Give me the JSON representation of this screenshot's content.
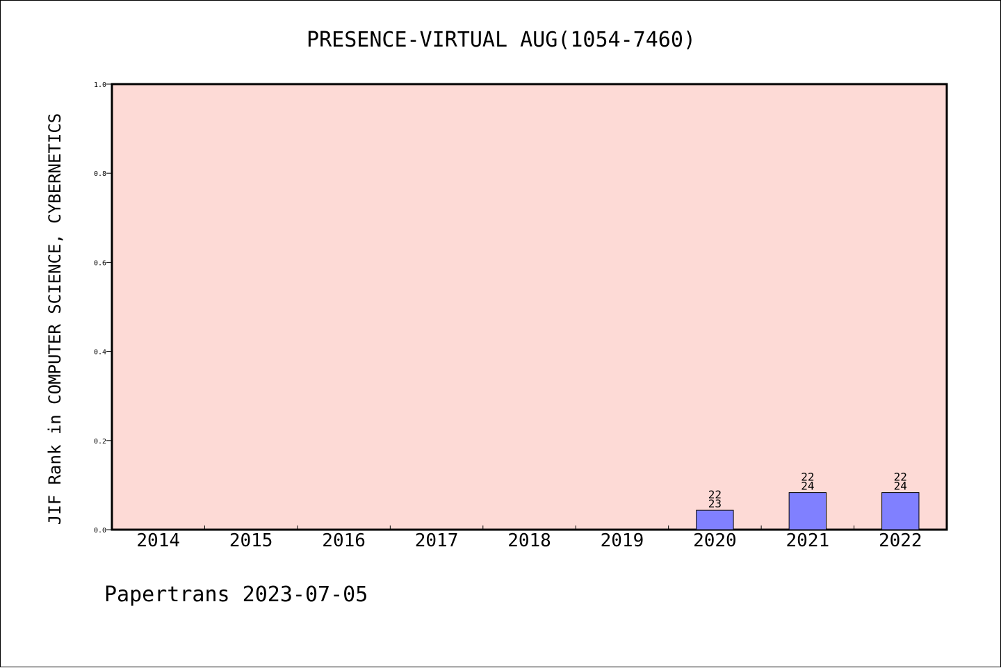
{
  "chart_data": {
    "type": "bar",
    "title": "PRESENCE-VIRTUAL AUG(1054-7460)",
    "xlabel": "",
    "ylabel": "JIF Rank in COMPUTER SCIENCE, CYBERNETICS",
    "categories": [
      "2014",
      "2015",
      "2016",
      "2017",
      "2018",
      "2019",
      "2020",
      "2021",
      "2022"
    ],
    "values": [
      null,
      null,
      null,
      null,
      null,
      null,
      0.0435,
      0.0833,
      0.0833
    ],
    "bar_labels": [
      null,
      null,
      null,
      null,
      null,
      null,
      [
        "22",
        "23"
      ],
      [
        "22",
        "24"
      ],
      [
        "22",
        "24"
      ]
    ],
    "ylim": [
      0,
      1.0
    ],
    "yticks": [
      "0.0",
      "0.2",
      "0.4",
      "0.6",
      "0.8",
      "1.0"
    ],
    "grid": false,
    "plot_background": "#fddad6",
    "bar_color": "#8080ff",
    "footer": "Papertrans 2023-07-05"
  }
}
